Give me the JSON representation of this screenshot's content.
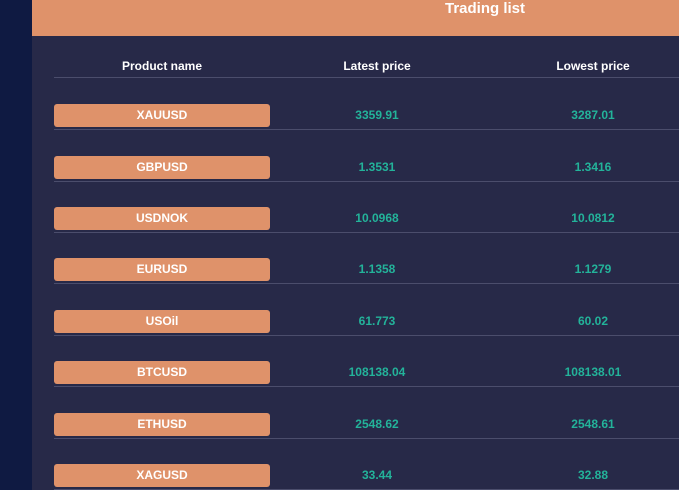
{
  "header": {
    "title": "Trading list"
  },
  "columns": {
    "product_name": "Product name",
    "latest_price": "Latest price",
    "lowest_price": "Lowest price"
  },
  "rows": [
    {
      "product": "XAUUSD",
      "latest": "3359.91",
      "lowest": "3287.01"
    },
    {
      "product": "GBPUSD",
      "latest": "1.3531",
      "lowest": "1.3416"
    },
    {
      "product": "USDNOK",
      "latest": "10.0968",
      "lowest": "10.0812"
    },
    {
      "product": "EURUSD",
      "latest": "1.1358",
      "lowest": "1.1279"
    },
    {
      "product": "USOil",
      "latest": "61.773",
      "lowest": "60.02"
    },
    {
      "product": "BTCUSD",
      "latest": "108138.04",
      "lowest": "108138.01"
    },
    {
      "product": "ETHUSD",
      "latest": "2548.62",
      "lowest": "2548.61"
    },
    {
      "product": "XAGUSD",
      "latest": "33.44",
      "lowest": "32.88"
    }
  ],
  "colors": {
    "accent": "#df926a",
    "panel_bg": "#272948",
    "page_bg": "#101a40",
    "price_text": "#23b39a"
  }
}
